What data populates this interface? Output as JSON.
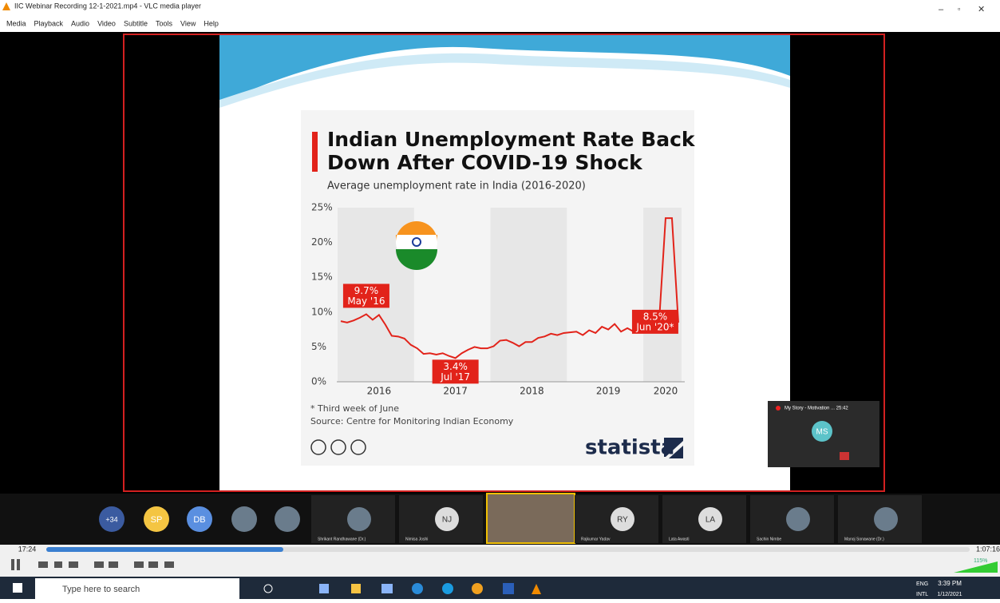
{
  "window": {
    "title": "IIC Webinar Recording 12-1-2021.mp4 - VLC media player",
    "menu": [
      "Media",
      "Playback",
      "Audio",
      "Video",
      "Subtitle",
      "Tools",
      "View",
      "Help"
    ]
  },
  "chart_data": {
    "type": "line",
    "title": [
      "Indian Unemployment Rate Back",
      "Down After COVID-19 Shock"
    ],
    "subtitle": "Average unemployment rate in India (2016-2020)",
    "categories": [
      null,
      null,
      null,
      null,
      null,
      null,
      "2016",
      null,
      null,
      null,
      null,
      null,
      null,
      null,
      null,
      null,
      null,
      null,
      "2017",
      null,
      null,
      null,
      null,
      null,
      null,
      null,
      null,
      null,
      null,
      null,
      "2018",
      null,
      null,
      null,
      null,
      null,
      null,
      null,
      null,
      null,
      null,
      null,
      "2019",
      null,
      null,
      null,
      null,
      null,
      null,
      null,
      null,
      "2020",
      null,
      null
    ],
    "series": [
      {
        "name": "Unemployment rate",
        "color": "#e2231a",
        "values": [
          8.7,
          8.5,
          8.8,
          9.2,
          9.7,
          8.9,
          9.6,
          8.2,
          6.6,
          6.5,
          6.2,
          5.3,
          4.8,
          4.0,
          4.1,
          3.9,
          4.1,
          3.7,
          3.4,
          4.1,
          4.6,
          5.0,
          4.8,
          4.8,
          5.1,
          5.9,
          6.0,
          5.6,
          5.1,
          5.7,
          5.7,
          6.3,
          6.5,
          6.9,
          6.7,
          7.0,
          7.1,
          7.2,
          6.7,
          7.4,
          7.0,
          7.9,
          7.5,
          8.3,
          7.2,
          7.7,
          7.2,
          7.6,
          7.2,
          7.8,
          8.8,
          23.5,
          23.5,
          8.5
        ],
        "value_labels": [
          null,
          null,
          null,
          null,
          "9.7%",
          null,
          null,
          null,
          null,
          null,
          null,
          null,
          null,
          null,
          null,
          null,
          null,
          null,
          "3.4%",
          null,
          null,
          null,
          null,
          null,
          null,
          null,
          null,
          null,
          null,
          null,
          null,
          null,
          null,
          null,
          null,
          null,
          null,
          null,
          null,
          null,
          null,
          null,
          null,
          null,
          null,
          null,
          null,
          null,
          null,
          null,
          null,
          null,
          null,
          "8.5%"
        ],
        "date_labels": [
          null,
          null,
          null,
          null,
          "May '16",
          null,
          null,
          null,
          null,
          null,
          null,
          null,
          null,
          null,
          null,
          null,
          null,
          null,
          "Jul '17",
          null,
          null,
          null,
          null,
          null,
          null,
          null,
          null,
          null,
          null,
          null,
          null,
          null,
          null,
          null,
          null,
          null,
          null,
          null,
          null,
          null,
          null,
          null,
          null,
          null,
          null,
          null,
          null,
          null,
          null,
          null,
          null,
          null,
          null,
          "Jun '20*"
        ]
      }
    ],
    "ylim": [
      0,
      25
    ],
    "yticks": [
      {
        "value": 0,
        "label": "0%"
      },
      {
        "value": 5,
        "label": "5%"
      },
      {
        "value": 10,
        "label": "10%"
      },
      {
        "value": 15,
        "label": "15%"
      },
      {
        "value": 20,
        "label": "20%"
      },
      {
        "value": 25,
        "label": "25%"
      }
    ],
    "grid": false,
    "footnote": "* Third week of June",
    "source": "Source: Centre for Monitoring Indian Economy",
    "brand": "statista"
  },
  "participants": {
    "more": "+34",
    "initials": [
      "SP",
      "DB"
    ],
    "named": [
      {
        "name": "Shrikant Randhawane (Dr.)"
      },
      {
        "initials": "NJ",
        "name": "Nimisa Joshi"
      },
      {
        "initials": "RY",
        "name": "Rajkumar Yadav"
      },
      {
        "initials": "LA",
        "name": "Lata Awasti"
      },
      {
        "name": "Sachin Nimbe"
      },
      {
        "name": "Manoj Sonawane (Dr.)"
      }
    ],
    "mini_window": {
      "title": "My Story - Motivation ... 25:42",
      "initials": "MS"
    }
  },
  "player": {
    "elapsed": "17:24",
    "duration": "1:07:16",
    "volume": "115%"
  },
  "taskbar": {
    "search": "Type here to search",
    "lang": "ENG",
    "layout": "INTL",
    "time": "3:39 PM",
    "date": "1/12/2021"
  }
}
